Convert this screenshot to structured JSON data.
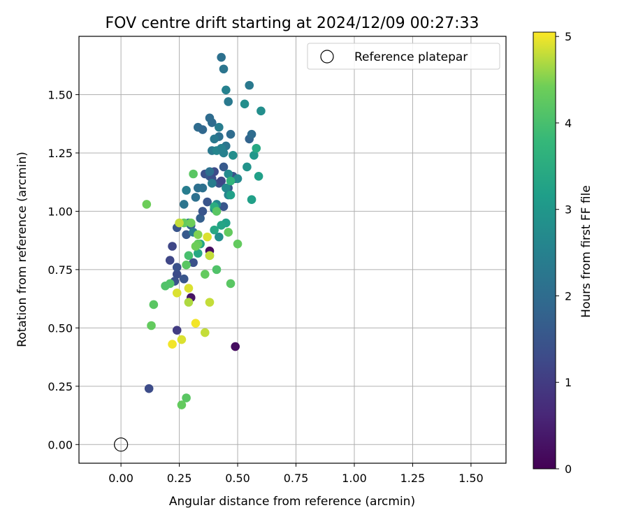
{
  "chart_data": {
    "type": "scatter",
    "title": "FOV centre drift starting at 2024/12/09 00:27:33",
    "xlabel": "Angular distance from reference (arcmin)",
    "ylabel": "Rotation from reference (arcmin)",
    "xlim": [
      -0.18,
      1.65
    ],
    "ylim": [
      -0.08,
      1.75
    ],
    "xticks": [
      "0.00",
      "0.25",
      "0.50",
      "0.75",
      "1.00",
      "1.25",
      "1.50"
    ],
    "yticks": [
      "0.00",
      "0.25",
      "0.50",
      "0.75",
      "1.00",
      "1.25",
      "1.50"
    ],
    "grid": true,
    "legend": {
      "placement": "top-right",
      "label": "Reference platepar"
    },
    "reference_point": {
      "x": 0.0,
      "y": 0.0
    },
    "colorbar": {
      "label": "Hours from first FF file",
      "range": [
        0,
        5.05
      ],
      "ticks": [
        "0",
        "1",
        "2",
        "3",
        "4",
        "5"
      ],
      "colormap": "viridis"
    },
    "series": [
      {
        "x": [
          0.3,
          0.38,
          0.49,
          0.12,
          0.24,
          0.22,
          0.21,
          0.24,
          0.27,
          0.24,
          0.23,
          0.24,
          0.31,
          0.28,
          0.3,
          0.34,
          0.35,
          0.37,
          0.36,
          0.38,
          0.39,
          0.4,
          0.42,
          0.43,
          0.44,
          0.44,
          0.46,
          0.48,
          0.49,
          0.33,
          0.35,
          0.39,
          0.42,
          0.45,
          0.55,
          0.43,
          0.44,
          0.45,
          0.46,
          0.47,
          0.55,
          0.56,
          0.33,
          0.35,
          0.38,
          0.39,
          0.4,
          0.41,
          0.42,
          0.43,
          0.28,
          0.27,
          0.29,
          0.31,
          0.32,
          0.38,
          0.39,
          0.4,
          0.41,
          0.42,
          0.44,
          0.45,
          0.46,
          0.5,
          0.46,
          0.48,
          0.53,
          0.54,
          0.57,
          0.58,
          0.6,
          0.59,
          0.56,
          0.45,
          0.47,
          0.43,
          0.34,
          0.33,
          0.4,
          0.4,
          0.47,
          0.38,
          0.33,
          0.46,
          0.41,
          0.36,
          0.5,
          0.28,
          0.32,
          0.31,
          0.29,
          0.41,
          0.47,
          0.28,
          0.19,
          0.21,
          0.14,
          0.13,
          0.11,
          0.26,
          0.27,
          0.3,
          0.33,
          0.25,
          0.37,
          0.38,
          0.29,
          0.24,
          0.38,
          0.22,
          0.29,
          0.32,
          0.36,
          0.26
        ],
        "y": [
          0.63,
          0.83,
          0.42,
          0.24,
          0.49,
          0.85,
          0.79,
          0.73,
          0.71,
          0.76,
          0.7,
          0.93,
          0.78,
          0.9,
          0.94,
          0.97,
          1.0,
          1.04,
          1.16,
          1.15,
          1.14,
          1.17,
          1.12,
          1.13,
          1.19,
          1.02,
          1.1,
          1.15,
          1.14,
          1.36,
          1.35,
          1.38,
          1.32,
          1.28,
          1.31,
          1.66,
          1.61,
          1.52,
          1.47,
          1.33,
          1.54,
          1.33,
          1.1,
          1.1,
          1.17,
          1.26,
          1.31,
          1.26,
          1.36,
          1.27,
          1.09,
          1.03,
          0.95,
          0.91,
          1.06,
          1.4,
          1.12,
          1.01,
          1.03,
          0.89,
          1.25,
          1.1,
          1.07,
          1.14,
          1.16,
          1.24,
          1.46,
          1.19,
          1.24,
          1.27,
          1.43,
          1.15,
          1.05,
          0.95,
          1.07,
          0.94,
          0.86,
          0.82,
          0.92,
          1.02,
          1.13,
          0.81,
          0.86,
          0.91,
          0.75,
          0.73,
          0.86,
          0.77,
          0.85,
          1.16,
          0.81,
          1.0,
          0.69,
          0.2,
          0.68,
          0.69,
          0.6,
          0.51,
          1.03,
          0.17,
          0.95,
          0.95,
          0.9,
          0.95,
          0.89,
          0.81,
          0.61,
          0.65,
          0.61,
          0.43,
          0.67,
          0.52,
          0.48,
          0.45
        ],
        "color_values": [
          0.3,
          0.2,
          0.2,
          1.3,
          1.0,
          1.2,
          1.2,
          1.3,
          1.5,
          1.4,
          1.4,
          1.5,
          1.4,
          1.6,
          1.7,
          1.7,
          1.5,
          1.5,
          1.4,
          1.6,
          1.4,
          1.3,
          1.4,
          1.2,
          1.6,
          1.5,
          1.6,
          1.5,
          1.4,
          2.0,
          1.9,
          2.0,
          2.1,
          2.2,
          1.8,
          2.1,
          2.2,
          2.5,
          2.3,
          2.0,
          2.3,
          2.0,
          2.1,
          2.1,
          2.1,
          2.3,
          2.3,
          2.6,
          2.4,
          2.5,
          2.4,
          2.2,
          2.2,
          2.4,
          2.1,
          2.0,
          2.4,
          2.5,
          2.6,
          2.8,
          2.5,
          2.7,
          2.6,
          2.7,
          2.7,
          2.8,
          2.8,
          2.9,
          3.0,
          3.4,
          2.8,
          3.2,
          3.2,
          3.2,
          3.2,
          3.3,
          3.3,
          3.4,
          3.4,
          3.5,
          3.7,
          3.8,
          4.3,
          4.3,
          4.1,
          4.3,
          4.3,
          4.2,
          4.4,
          4.2,
          4.0,
          4.2,
          4.2,
          4.2,
          4.1,
          4.1,
          4.2,
          4.3,
          4.4,
          4.3,
          4.3,
          4.4,
          4.5,
          4.8,
          4.9,
          4.8,
          4.7,
          4.9,
          4.8,
          5.0,
          4.9,
          5.0,
          4.8,
          4.9
        ]
      }
    ]
  }
}
